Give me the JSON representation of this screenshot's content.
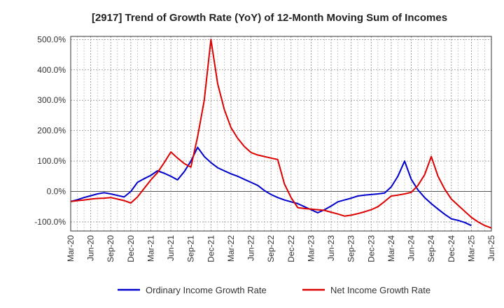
{
  "chart_data": {
    "type": "line",
    "title": "[2917]  Trend of Growth Rate (YoY) of 12-Month Moving Sum of Incomes",
    "xlabel": "",
    "ylabel": "",
    "ylim": [
      -130,
      510
    ],
    "yticks": [
      -100,
      0,
      100,
      200,
      300,
      400,
      500
    ],
    "ytick_labels": [
      "-100.0%",
      "0.0%",
      "100.0%",
      "200.0%",
      "300.0%",
      "400.0%",
      "500.0%"
    ],
    "xtick_labels": [
      "Mar-20",
      "Jun-20",
      "Sep-20",
      "Dec-20",
      "Mar-21",
      "Jun-21",
      "Sep-21",
      "Dec-21",
      "Mar-22",
      "Jun-22",
      "Sep-22",
      "Dec-22",
      "Mar-23",
      "Jun-23",
      "Sep-23",
      "Dec-23",
      "Mar-24",
      "Jun-24",
      "Sep-24",
      "Dec-24",
      "Mar-25",
      "Jun-25"
    ],
    "grid": true,
    "legend_position": "bottom",
    "series": [
      {
        "name": "Ordinary Income Growth Rate",
        "color": "#0000cc",
        "values": [
          -33,
          -27,
          -20,
          -14,
          -8,
          -4,
          -8,
          -13,
          -18,
          0,
          30,
          42,
          53,
          68,
          60,
          50,
          38,
          65,
          100,
          145,
          115,
          95,
          78,
          68,
          58,
          50,
          40,
          30,
          20,
          3,
          -10,
          -20,
          -28,
          -34,
          -40,
          -50,
          -60,
          -70,
          -60,
          -48,
          -34,
          -28,
          -22,
          -15,
          -12,
          -10,
          -8,
          -5,
          15,
          50,
          100,
          40,
          5,
          -20,
          -40,
          -58,
          -75,
          -90,
          -95,
          -102,
          -112
        ]
      },
      {
        "name": "Net Income Growth Rate",
        "color": "#dd0000",
        "values": [
          -33,
          -30,
          -28,
          -25,
          -23,
          -22,
          -20,
          -25,
          -30,
          -38,
          -18,
          10,
          38,
          62,
          95,
          130,
          110,
          92,
          80,
          180,
          300,
          500,
          355,
          270,
          210,
          175,
          148,
          128,
          120,
          115,
          110,
          105,
          25,
          -20,
          -53,
          -56,
          -58,
          -60,
          -62,
          -68,
          -74,
          -81,
          -78,
          -73,
          -67,
          -60,
          -50,
          -33,
          -15,
          -12,
          -8,
          -3,
          20,
          55,
          115,
          50,
          8,
          -25,
          -45,
          -65,
          -85,
          -100,
          -112,
          -120
        ]
      }
    ]
  },
  "legend": {
    "items": [
      "Ordinary Income Growth Rate",
      "Net Income Growth Rate"
    ]
  }
}
